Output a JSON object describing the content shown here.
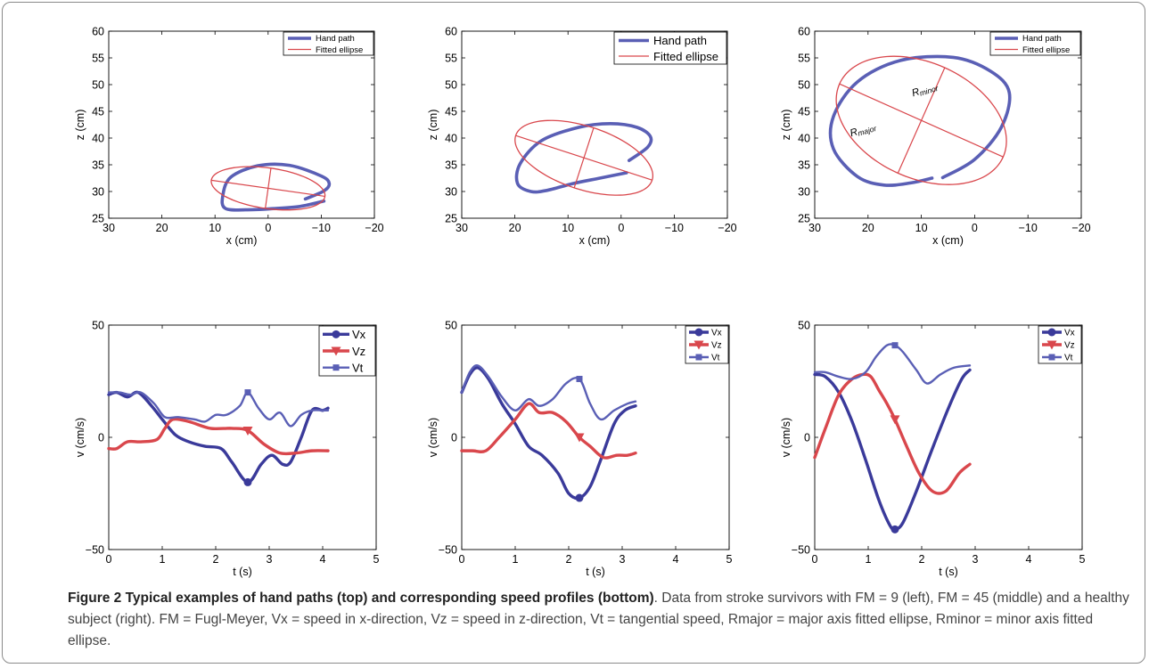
{
  "caption": {
    "title": "Figure 2 Typical examples of hand paths (top) and corresponding speed profiles (bottom)",
    "body": ". Data from stroke survivors with FM = 9 (left), FM = 45 (middle) and a healthy subject (right). FM = Fugl-Meyer, Vx = speed in x-direction, Vz = speed in z-direction, Vt = tangential speed, Rmajor = major axis fitted ellipse, Rminor = minor axis fitted ellipse."
  },
  "colors": {
    "hand_path": "#5a5fb5",
    "ellipse": "#d9474c",
    "vx": "#3a3a9a",
    "vz": "#d9474c",
    "vt": "#5a5fb5"
  },
  "chart_data": [
    {
      "type": "line",
      "panel": "hand-path-left",
      "xlabel": "x (cm)",
      "ylabel": "z (cm)",
      "xlim": [
        30,
        -20
      ],
      "ylim": [
        25,
        60
      ],
      "x_reversed": true,
      "xticks": [
        30,
        20,
        10,
        0,
        -10,
        -20
      ],
      "yticks": [
        25,
        30,
        35,
        40,
        45,
        50,
        55,
        60
      ],
      "legend": [
        "Hand path",
        "Fitted ellipse"
      ],
      "legend_position": "top-right",
      "ellipse": {
        "cx": 0,
        "cy": 30.6,
        "a": 10.8,
        "b": 3.8,
        "angle_deg": 8
      },
      "series": [
        {
          "name": "Hand path",
          "x": [
            -10.5,
            -6,
            -1,
            3,
            8,
            8.5,
            7,
            2,
            -4,
            -10,
            -11.5,
            -10.5,
            -7
          ],
          "y": [
            28.2,
            27.2,
            26.8,
            26.6,
            26.8,
            29.4,
            32.7,
            34.8,
            34.9,
            32.9,
            31.5,
            30.1,
            28.6
          ]
        }
      ]
    },
    {
      "type": "line",
      "panel": "hand-path-middle",
      "xlabel": "x (cm)",
      "ylabel": "z (cm)",
      "xlim": [
        30,
        -20
      ],
      "ylim": [
        25,
        60
      ],
      "x_reversed": true,
      "xticks": [
        30,
        20,
        10,
        0,
        -10,
        -20
      ],
      "yticks": [
        25,
        30,
        35,
        40,
        45,
        50,
        55,
        60
      ],
      "legend": [
        "Hand path",
        "Fitted ellipse"
      ],
      "legend_position": "top-right",
      "ellipse": {
        "cx": 7,
        "cy": 36.3,
        "a": 13.5,
        "b": 5.9,
        "angle_deg": 18
      },
      "series": [
        {
          "name": "Hand path",
          "x": [
            -1,
            4,
            9,
            14,
            17,
            19.5,
            19,
            15,
            8,
            2,
            -3,
            -5.5,
            -5,
            -1.5
          ],
          "y": [
            33.5,
            32.5,
            31.5,
            30.2,
            30,
            31.5,
            35.2,
            39.5,
            42,
            42.7,
            42,
            40.3,
            38.3,
            35.8
          ]
        }
      ]
    },
    {
      "type": "line",
      "panel": "hand-path-right",
      "xlabel": "x (cm)",
      "ylabel": "z (cm)",
      "xlim": [
        30,
        -20
      ],
      "ylim": [
        25,
        60
      ],
      "x_reversed": true,
      "xticks": [
        30,
        20,
        10,
        0,
        -10,
        -20
      ],
      "yticks": [
        25,
        30,
        35,
        40,
        45,
        50,
        55,
        60
      ],
      "legend": [
        "Hand path",
        "Fitted ellipse"
      ],
      "legend_position": "top-right",
      "ellipse": {
        "cx": 10,
        "cy": 43.3,
        "a": 16.8,
        "b": 10.8,
        "angle_deg": 24
      },
      "annotations": [
        "R_{major}",
        "R_{minor}"
      ],
      "series": [
        {
          "name": "Hand path",
          "x": [
            8,
            12,
            17,
            22,
            26.5,
            26.5,
            22,
            14,
            4,
            -3,
            -6.5,
            -5,
            0,
            6
          ],
          "y": [
            32.5,
            31.6,
            31.2,
            32.8,
            38,
            44,
            50.5,
            54.5,
            55.1,
            52.5,
            48.5,
            42,
            36,
            32.6
          ]
        }
      ]
    },
    {
      "type": "line",
      "panel": "speed-left",
      "xlabel": "t (s)",
      "ylabel": "v (cm/s)",
      "xlim": [
        0,
        5
      ],
      "ylim": [
        -50,
        50
      ],
      "xticks": [
        0,
        1,
        2,
        3,
        4,
        5
      ],
      "yticks": [
        -50,
        0,
        50
      ],
      "legend_position": "top-right",
      "series": [
        {
          "name": "Vx",
          "marker": "circle",
          "marker_x": 2.6,
          "x": [
            0,
            0.15,
            0.35,
            0.55,
            0.8,
            1.0,
            1.25,
            1.5,
            1.8,
            2.1,
            2.3,
            2.6,
            2.85,
            3.05,
            3.25,
            3.4,
            3.6,
            3.8,
            4.0,
            4.1
          ],
          "y": [
            19,
            20,
            18,
            20,
            14,
            8,
            1,
            -2,
            -4,
            -5,
            -11,
            -20,
            -12,
            -8,
            -12,
            -11,
            0,
            12,
            12,
            13
          ]
        },
        {
          "name": "Vz",
          "marker": "triangle",
          "marker_x": 2.6,
          "x": [
            0,
            0.15,
            0.35,
            0.6,
            0.9,
            1.05,
            1.2,
            1.5,
            1.9,
            2.3,
            2.6,
            2.9,
            3.2,
            3.5,
            3.8,
            4.1
          ],
          "y": [
            -5,
            -5,
            -2,
            -2,
            -1,
            4,
            8,
            7,
            4,
            4,
            3,
            -3,
            -7,
            -7,
            -6,
            -6
          ]
        },
        {
          "name": "Vt",
          "marker": "square",
          "marker_x": 2.6,
          "x": [
            0,
            0.2,
            0.4,
            0.6,
            0.85,
            1.05,
            1.3,
            1.6,
            1.8,
            2.0,
            2.2,
            2.45,
            2.6,
            2.8,
            3.0,
            3.2,
            3.4,
            3.6,
            3.8,
            4.0,
            4.1
          ],
          "y": [
            20,
            20,
            19,
            20,
            15,
            9,
            9,
            8,
            7,
            10,
            10,
            14,
            20,
            13,
            8,
            11,
            5,
            10,
            12,
            12,
            12
          ]
        }
      ]
    },
    {
      "type": "line",
      "panel": "speed-middle",
      "xlabel": "t (s)",
      "ylabel": "v (cm/s)",
      "xlim": [
        0,
        5
      ],
      "ylim": [
        -50,
        50
      ],
      "xticks": [
        0,
        1,
        2,
        3,
        4,
        5
      ],
      "yticks": [
        -50,
        0,
        50
      ],
      "legend_position": "top-right",
      "series": [
        {
          "name": "Vx",
          "marker": "circle",
          "marker_x": 2.2,
          "x": [
            0,
            0.15,
            0.3,
            0.5,
            0.75,
            1.0,
            1.25,
            1.5,
            1.8,
            2.0,
            2.2,
            2.4,
            2.6,
            2.85,
            3.05,
            3.25
          ],
          "y": [
            20,
            28,
            31,
            26,
            15,
            6,
            -4,
            -8,
            -16,
            -25,
            -27,
            -22,
            -10,
            6,
            12,
            14
          ]
        },
        {
          "name": "Vz",
          "marker": "triangle",
          "marker_x": 2.2,
          "x": [
            0,
            0.2,
            0.45,
            0.7,
            1.0,
            1.25,
            1.45,
            1.7,
            1.95,
            2.2,
            2.4,
            2.65,
            2.9,
            3.1,
            3.25
          ],
          "y": [
            -6,
            -6,
            -6,
            0,
            8,
            15,
            11,
            11,
            7,
            0,
            -4,
            -9,
            -8,
            -8,
            -7
          ]
        },
        {
          "name": "Vt",
          "marker": "square",
          "marker_x": 2.2,
          "x": [
            0,
            0.15,
            0.3,
            0.5,
            0.75,
            1.0,
            1.25,
            1.45,
            1.7,
            1.95,
            2.2,
            2.4,
            2.6,
            2.85,
            3.1,
            3.25
          ],
          "y": [
            20,
            29,
            32,
            27,
            18,
            12,
            17,
            14,
            17,
            24,
            26,
            15,
            8,
            12,
            15,
            16
          ]
        }
      ]
    },
    {
      "type": "line",
      "panel": "speed-right",
      "xlabel": "t (s)",
      "ylabel": "v (cm/s)",
      "xlim": [
        0,
        5
      ],
      "ylim": [
        -50,
        50
      ],
      "xticks": [
        0,
        1,
        2,
        3,
        4,
        5
      ],
      "yticks": [
        -50,
        0,
        50
      ],
      "legend_position": "top-right",
      "series": [
        {
          "name": "Vx",
          "marker": "circle",
          "marker_x": 1.5,
          "x": [
            0,
            0.2,
            0.45,
            0.7,
            0.95,
            1.2,
            1.4,
            1.5,
            1.65,
            1.9,
            2.2,
            2.5,
            2.75,
            2.9
          ],
          "y": [
            28,
            27,
            20,
            7,
            -10,
            -28,
            -39,
            -41,
            -38,
            -24,
            -5,
            13,
            26,
            30
          ]
        },
        {
          "name": "Vz",
          "marker": "triangle",
          "marker_x": 1.5,
          "x": [
            0,
            0.2,
            0.45,
            0.7,
            0.9,
            1.05,
            1.2,
            1.35,
            1.5,
            1.7,
            1.95,
            2.2,
            2.45,
            2.7,
            2.9
          ],
          "y": [
            -9,
            4,
            19,
            26,
            28,
            27,
            21,
            15,
            8,
            -3,
            -16,
            -24,
            -24,
            -16,
            -12
          ]
        },
        {
          "name": "Vt",
          "marker": "square",
          "marker_x": 1.5,
          "x": [
            0,
            0.2,
            0.45,
            0.7,
            0.95,
            1.15,
            1.35,
            1.5,
            1.65,
            1.9,
            2.1,
            2.35,
            2.6,
            2.9
          ],
          "y": [
            29,
            29,
            27,
            26,
            29,
            36,
            41,
            41,
            38,
            30,
            24,
            28,
            31,
            32
          ]
        }
      ]
    }
  ]
}
